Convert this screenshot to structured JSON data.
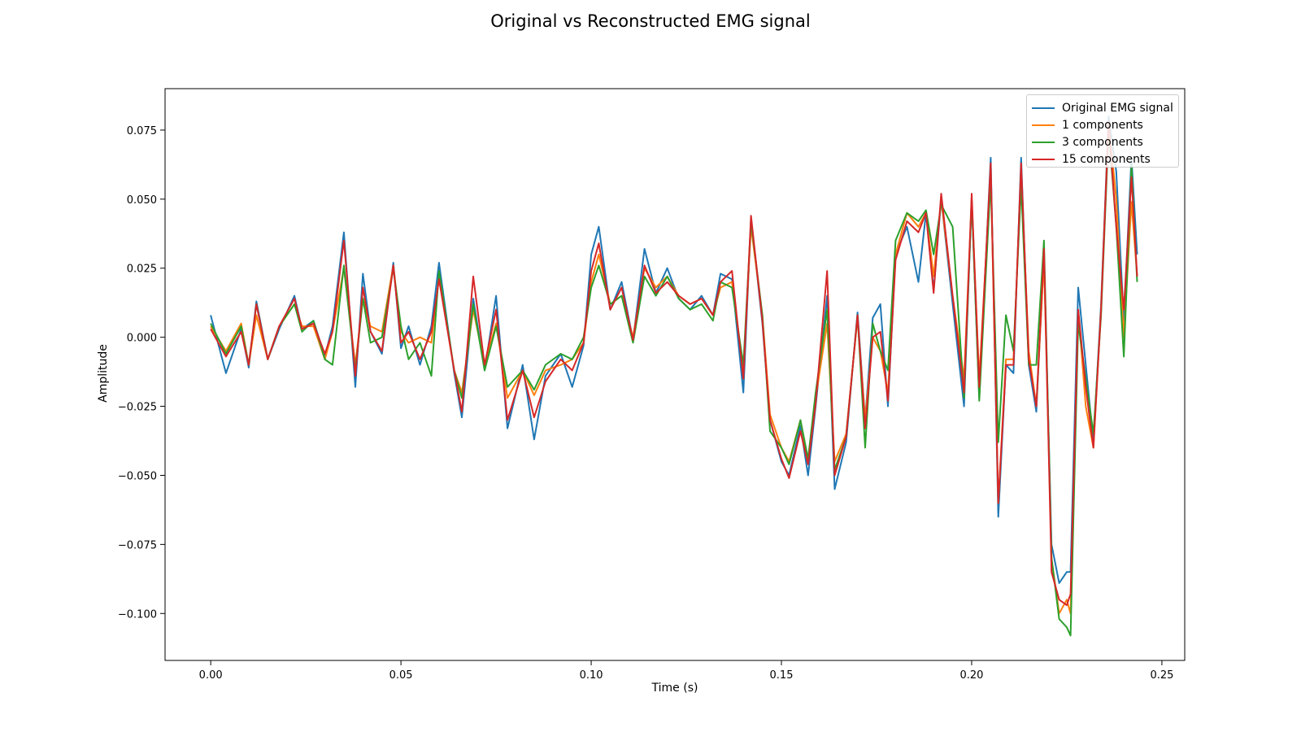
{
  "chart_data": {
    "type": "line",
    "title": "Original vs Reconstructed EMG signal",
    "xlabel": "Time (s)",
    "ylabel": "Amplitude",
    "xlim": [
      -0.012,
      0.256
    ],
    "ylim": [
      -0.117,
      0.09
    ],
    "xticks": [
      0.0,
      0.05,
      0.1,
      0.15,
      0.2,
      0.25
    ],
    "xtick_labels": [
      "0.00",
      "0.05",
      "0.10",
      "0.15",
      "0.20",
      "0.25"
    ],
    "yticks": [
      0.075,
      0.05,
      0.025,
      0.0,
      -0.025,
      -0.05,
      -0.075,
      -0.1
    ],
    "ytick_labels": [
      "0.075",
      "0.050",
      "0.025",
      "0.000",
      "−0.025",
      "−0.050",
      "−0.075",
      "−0.100"
    ],
    "grid": false,
    "legend_position": "upper right",
    "x": [
      0.0,
      0.004,
      0.008,
      0.01,
      0.012,
      0.015,
      0.018,
      0.022,
      0.024,
      0.027,
      0.03,
      0.032,
      0.035,
      0.038,
      0.04,
      0.042,
      0.045,
      0.048,
      0.05,
      0.052,
      0.055,
      0.058,
      0.06,
      0.064,
      0.066,
      0.069,
      0.072,
      0.075,
      0.078,
      0.082,
      0.085,
      0.088,
      0.092,
      0.095,
      0.098,
      0.1,
      0.102,
      0.105,
      0.108,
      0.111,
      0.114,
      0.117,
      0.12,
      0.123,
      0.126,
      0.129,
      0.132,
      0.134,
      0.137,
      0.14,
      0.142,
      0.145,
      0.147,
      0.15,
      0.152,
      0.155,
      0.157,
      0.159,
      0.162,
      0.164,
      0.167,
      0.17,
      0.172,
      0.174,
      0.176,
      0.178,
      0.18,
      0.183,
      0.186,
      0.188,
      0.19,
      0.192,
      0.195,
      0.198,
      0.2,
      0.202,
      0.205,
      0.207,
      0.209,
      0.211,
      0.213,
      0.215,
      0.217,
      0.219,
      0.221,
      0.223,
      0.225,
      0.226,
      0.228,
      0.23,
      0.232,
      0.234,
      0.236,
      0.238,
      0.24,
      0.242,
      0.2435
    ],
    "series": [
      {
        "name": "Original EMG signal",
        "color": "#1f77b4",
        "values": [
          0.008,
          -0.013,
          0.003,
          -0.011,
          0.013,
          -0.008,
          0.003,
          0.015,
          0.003,
          0.006,
          -0.007,
          0.004,
          0.038,
          -0.018,
          0.023,
          0.002,
          -0.006,
          0.027,
          -0.004,
          0.004,
          -0.01,
          0.004,
          0.027,
          -0.013,
          -0.029,
          0.014,
          -0.012,
          0.015,
          -0.033,
          -0.01,
          -0.037,
          -0.014,
          -0.006,
          -0.018,
          -0.003,
          0.03,
          0.04,
          0.01,
          0.02,
          -0.001,
          0.032,
          0.016,
          0.025,
          0.014,
          0.01,
          0.015,
          0.008,
          0.023,
          0.021,
          -0.02,
          0.043,
          0.005,
          -0.03,
          -0.045,
          -0.05,
          -0.032,
          -0.05,
          -0.025,
          0.015,
          -0.055,
          -0.038,
          0.009,
          -0.03,
          0.007,
          0.012,
          -0.025,
          0.03,
          0.04,
          0.02,
          0.045,
          0.017,
          0.05,
          0.012,
          -0.025,
          0.05,
          -0.022,
          0.065,
          -0.065,
          -0.01,
          -0.013,
          0.065,
          -0.01,
          -0.027,
          0.03,
          -0.075,
          -0.089,
          -0.085,
          -0.085,
          0.018,
          -0.01,
          -0.038,
          0.012,
          0.08,
          0.06,
          0.006,
          0.065,
          0.03
        ]
      },
      {
        "name": "1 components",
        "color": "#ff7f0e",
        "values": [
          0.004,
          -0.005,
          0.005,
          -0.01,
          0.008,
          -0.008,
          0.004,
          0.012,
          0.004,
          0.004,
          -0.008,
          0.002,
          0.025,
          -0.01,
          0.014,
          0.004,
          0.002,
          0.026,
          0.002,
          -0.002,
          0.0,
          -0.002,
          0.022,
          -0.012,
          -0.02,
          0.01,
          -0.01,
          0.005,
          -0.022,
          -0.012,
          -0.021,
          -0.012,
          -0.01,
          -0.008,
          -0.002,
          0.02,
          0.03,
          0.012,
          0.015,
          0.0,
          0.025,
          0.018,
          0.022,
          0.015,
          0.012,
          0.014,
          0.008,
          0.018,
          0.02,
          -0.012,
          0.04,
          0.008,
          -0.028,
          -0.04,
          -0.045,
          -0.03,
          -0.045,
          -0.022,
          0.005,
          -0.045,
          -0.035,
          0.007,
          -0.03,
          0.0,
          -0.005,
          -0.02,
          0.03,
          0.045,
          0.04,
          0.045,
          0.022,
          0.05,
          0.015,
          -0.015,
          0.05,
          -0.015,
          0.06,
          -0.06,
          -0.008,
          -0.008,
          0.06,
          -0.005,
          -0.025,
          0.028,
          -0.08,
          -0.1,
          -0.095,
          -0.1,
          0.01,
          -0.025,
          -0.04,
          0.01,
          0.078,
          0.05,
          0.0,
          0.049,
          0.022
        ]
      },
      {
        "name": "3 components",
        "color": "#2ca02c",
        "values": [
          0.005,
          -0.006,
          0.004,
          -0.01,
          0.012,
          -0.008,
          0.004,
          0.012,
          0.002,
          0.006,
          -0.008,
          -0.01,
          0.026,
          -0.012,
          0.014,
          -0.002,
          0.0,
          0.025,
          0.004,
          -0.008,
          -0.002,
          -0.014,
          0.024,
          -0.012,
          -0.022,
          0.012,
          -0.012,
          0.004,
          -0.018,
          -0.012,
          -0.019,
          -0.01,
          -0.006,
          -0.008,
          0.0,
          0.018,
          0.026,
          0.012,
          0.015,
          -0.002,
          0.022,
          0.015,
          0.022,
          0.014,
          0.01,
          0.012,
          0.006,
          0.02,
          0.018,
          -0.01,
          0.042,
          0.008,
          -0.034,
          -0.04,
          -0.046,
          -0.03,
          -0.044,
          -0.02,
          0.01,
          -0.048,
          -0.036,
          0.008,
          -0.04,
          0.005,
          -0.005,
          -0.012,
          0.035,
          0.045,
          0.042,
          0.046,
          0.03,
          0.048,
          0.04,
          -0.022,
          0.05,
          -0.023,
          0.057,
          -0.038,
          0.008,
          -0.005,
          0.055,
          -0.01,
          -0.01,
          0.035,
          -0.08,
          -0.102,
          -0.105,
          -0.108,
          0.005,
          -0.015,
          -0.035,
          0.008,
          0.075,
          0.04,
          -0.007,
          0.062,
          0.02
        ]
      },
      {
        "name": "15 components",
        "color": "#d62728",
        "values": [
          0.003,
          -0.007,
          0.002,
          -0.01,
          0.012,
          -0.008,
          0.004,
          0.014,
          0.003,
          0.005,
          -0.006,
          0.002,
          0.035,
          -0.014,
          0.018,
          0.002,
          -0.005,
          0.026,
          -0.002,
          0.002,
          -0.008,
          0.002,
          0.021,
          -0.012,
          -0.027,
          0.022,
          -0.01,
          0.01,
          -0.03,
          -0.012,
          -0.029,
          -0.016,
          -0.008,
          -0.012,
          -0.002,
          0.024,
          0.034,
          0.01,
          0.018,
          -0.001,
          0.026,
          0.016,
          0.02,
          0.015,
          0.012,
          0.014,
          0.008,
          0.02,
          0.024,
          -0.015,
          0.044,
          0.006,
          -0.03,
          -0.044,
          -0.051,
          -0.034,
          -0.046,
          -0.024,
          0.024,
          -0.05,
          -0.036,
          0.008,
          -0.033,
          0.0,
          0.002,
          -0.023,
          0.028,
          0.042,
          0.038,
          0.045,
          0.016,
          0.052,
          0.015,
          -0.02,
          0.052,
          -0.018,
          0.063,
          -0.06,
          -0.01,
          -0.01,
          0.063,
          -0.008,
          -0.025,
          0.032,
          -0.085,
          -0.095,
          -0.097,
          -0.093,
          0.01,
          -0.018,
          -0.04,
          0.01,
          0.078,
          0.04,
          0.01,
          0.058,
          0.022
        ]
      }
    ]
  }
}
